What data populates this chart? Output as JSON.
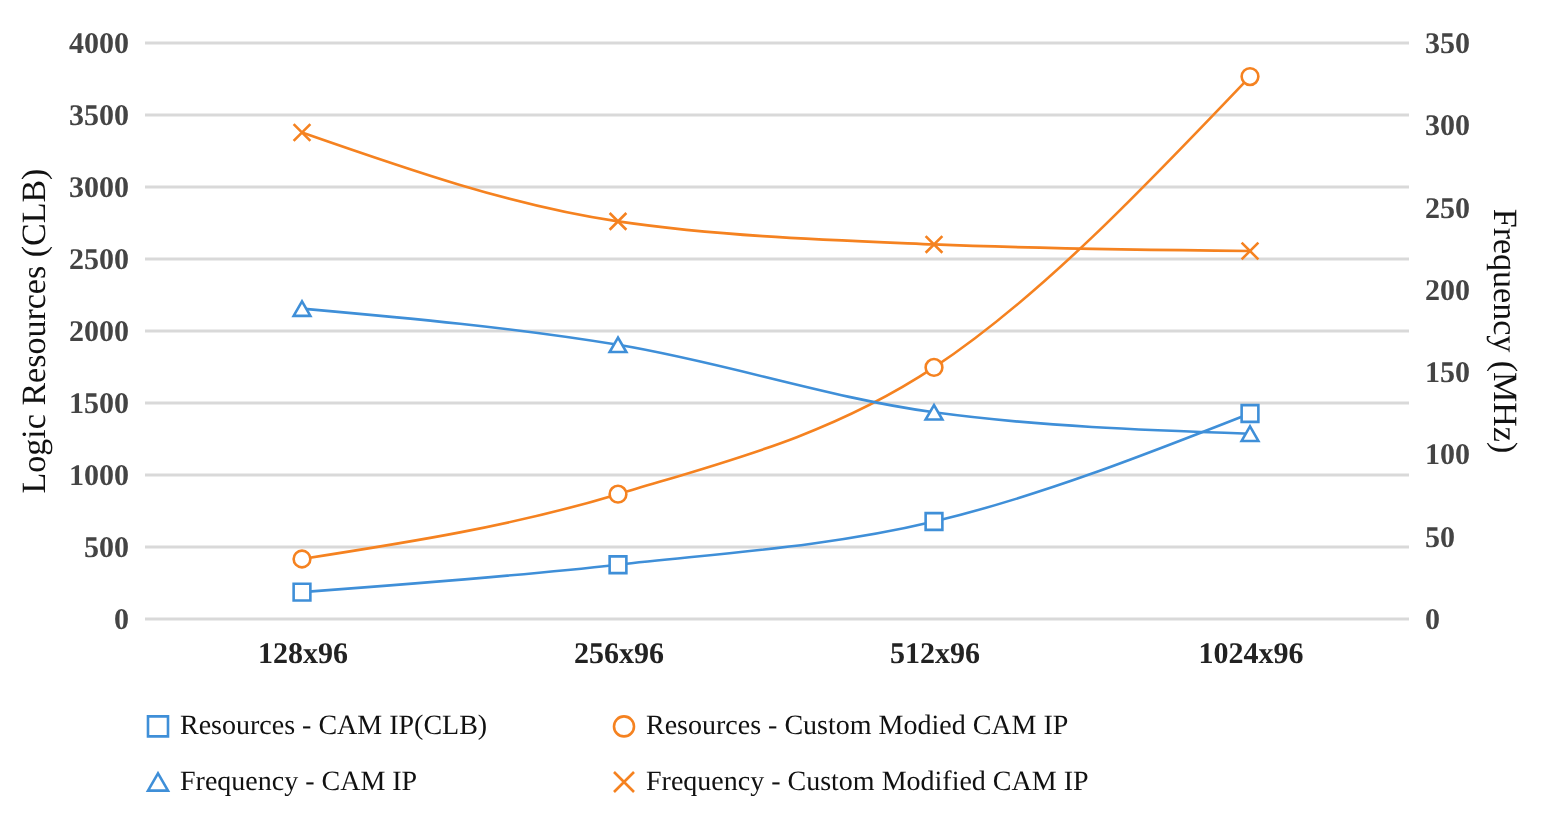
{
  "chart_data": {
    "type": "line",
    "categories": [
      "128x96",
      "256x96",
      "512x96",
      "1024x96"
    ],
    "ylabel": "Logic Resources (CLB)",
    "y2label": "Frequency (MHz)",
    "ylim": [
      0,
      4000
    ],
    "yticks": [
      0,
      500,
      1000,
      1500,
      2000,
      2500,
      3000,
      3500,
      4000
    ],
    "y2lim": [
      0,
      350
    ],
    "y2ticks": [
      0,
      50,
      100,
      150,
      200,
      250,
      300,
      350
    ],
    "grid": "y",
    "legend": "bottom",
    "line_style": "solid",
    "series": [
      {
        "name": "Resources - CAM IP(CLB)",
        "color": "#3f8fd8",
        "marker": "square",
        "values": [
          180,
          370,
          670,
          1420
        ]
      },
      {
        "name": "Resources - Custom Modied CAM IP",
        "color": "#f58220",
        "marker": "circle",
        "values": [
          410,
          860,
          1740,
          3760
        ]
      },
      {
        "name": "Frequency - CAM IP",
        "color": "#3f8fd8",
        "marker": "triangle",
        "axis": "y2",
        "values": [
          188,
          166,
          125,
          112
        ]
      },
      {
        "name": "Frequency - Custom Modified CAM IP",
        "color": "#f58220",
        "marker": "cross",
        "axis": "y2",
        "values": [
          295,
          241,
          227,
          223
        ]
      }
    ]
  }
}
